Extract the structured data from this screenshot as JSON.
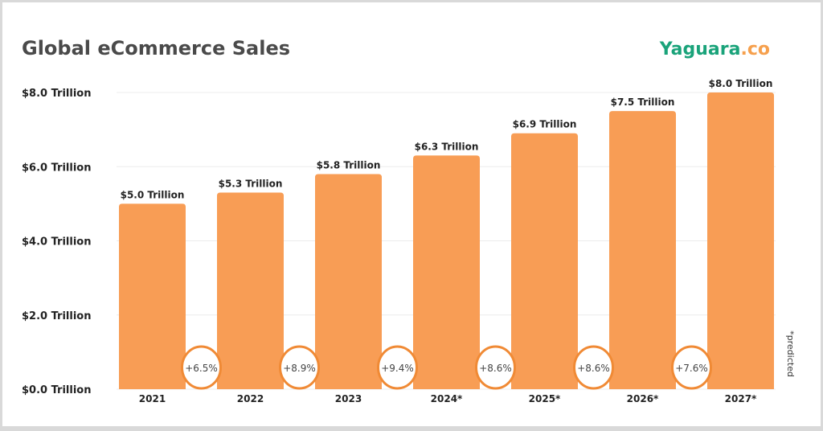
{
  "brand": {
    "name_main": "Yaguara",
    "name_suffix": ".co",
    "main_color": "#1aa37a",
    "suffix_color": "#f6a04d"
  },
  "footnote": "*predicted",
  "colors": {
    "bar": "#f89d55",
    "circle_stroke": "#f08a35",
    "text": "#222222",
    "title": "#4a4a4a",
    "grid": "#ececec"
  },
  "chart_data": {
    "type": "bar",
    "title": "Global eCommerce Sales",
    "categories": [
      "2021",
      "2022",
      "2023",
      "2024*",
      "2025*",
      "2026*",
      "2027*"
    ],
    "values": [
      5.0,
      5.3,
      5.8,
      6.3,
      6.9,
      7.5,
      8.0
    ],
    "data_labels": [
      "$5.0 Trillion",
      "$5.3 Trillion",
      "$5.8 Trillion",
      "$6.3 Trillion",
      "$6.9 Trillion",
      "$7.5 Trillion",
      "$8.0 Trillion"
    ],
    "growth_labels": [
      "+6.5%",
      "+8.9%",
      "+9.4%",
      "+8.6%",
      "+8.6%",
      "+7.6%"
    ],
    "yticks": [
      0,
      2,
      4,
      6,
      8
    ],
    "ytick_labels": [
      "$0.0 Trillion",
      "$2.0 Trillion",
      "$4.0 Trillion",
      "$6.0 Trillion",
      "$8.0 Trillion"
    ],
    "ylim": [
      0,
      8
    ],
    "xlabel": "",
    "ylabel": "",
    "grid": true,
    "legend": "none"
  }
}
